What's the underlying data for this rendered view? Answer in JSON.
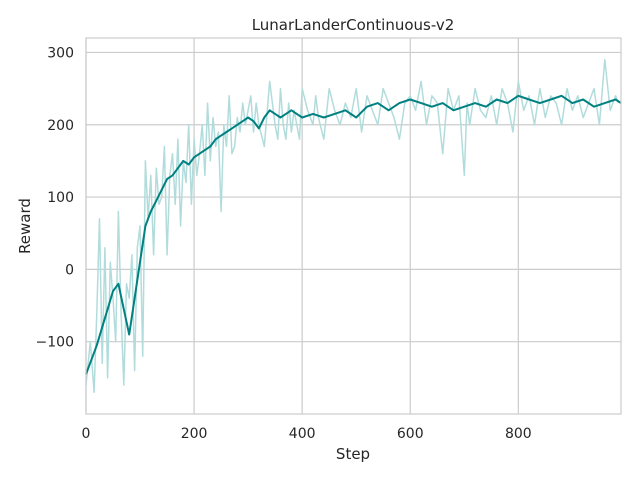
{
  "chart_data": {
    "type": "line",
    "title": "LunarLanderContinuous-v2",
    "xlabel": "Step",
    "ylabel": "Reward",
    "xlim": [
      0,
      990
    ],
    "ylim": [
      -200,
      320
    ],
    "xticks": [
      0,
      200,
      400,
      600,
      800
    ],
    "yticks": [
      -100,
      0,
      100,
      200,
      300
    ],
    "grid": true,
    "colors": {
      "raw": "#b2dcdc",
      "smoothed": "#008080"
    },
    "series": [
      {
        "role": "raw",
        "x": [
          0,
          8,
          15,
          20,
          25,
          30,
          35,
          40,
          45,
          50,
          55,
          60,
          65,
          70,
          75,
          80,
          85,
          90,
          95,
          100,
          105,
          110,
          115,
          120,
          125,
          130,
          135,
          140,
          145,
          150,
          155,
          160,
          165,
          170,
          175,
          180,
          185,
          190,
          195,
          200,
          205,
          210,
          215,
          220,
          225,
          230,
          235,
          240,
          245,
          250,
          255,
          260,
          265,
          270,
          275,
          280,
          285,
          290,
          295,
          300,
          305,
          310,
          315,
          320,
          330,
          340,
          350,
          355,
          360,
          365,
          370,
          375,
          380,
          385,
          390,
          395,
          400,
          410,
          420,
          425,
          430,
          440,
          450,
          460,
          470,
          480,
          490,
          500,
          510,
          520,
          530,
          540,
          550,
          560,
          570,
          580,
          590,
          600,
          610,
          620,
          630,
          640,
          650,
          660,
          670,
          680,
          690,
          700,
          705,
          710,
          720,
          730,
          740,
          750,
          760,
          770,
          780,
          790,
          800,
          810,
          820,
          830,
          840,
          850,
          860,
          870,
          880,
          890,
          900,
          910,
          920,
          930,
          940,
          950,
          960,
          970,
          980,
          985
        ],
        "y": [
          -160,
          -100,
          -170,
          -60,
          70,
          -130,
          30,
          -150,
          10,
          -40,
          -100,
          80,
          -60,
          -160,
          -20,
          -40,
          20,
          -140,
          30,
          60,
          -120,
          150,
          70,
          130,
          20,
          140,
          90,
          100,
          170,
          20,
          130,
          160,
          90,
          180,
          60,
          150,
          120,
          200,
          90,
          180,
          130,
          160,
          200,
          130,
          230,
          150,
          210,
          170,
          190,
          80,
          200,
          170,
          240,
          160,
          170,
          210,
          190,
          230,
          200,
          220,
          240,
          190,
          230,
          200,
          170,
          260,
          200,
          180,
          250,
          200,
          180,
          230,
          190,
          220,
          200,
          180,
          250,
          220,
          200,
          240,
          210,
          180,
          250,
          220,
          200,
          230,
          210,
          250,
          190,
          240,
          220,
          200,
          250,
          230,
          210,
          180,
          230,
          240,
          220,
          260,
          200,
          240,
          230,
          160,
          250,
          220,
          240,
          130,
          230,
          200,
          250,
          220,
          210,
          240,
          200,
          250,
          230,
          190,
          260,
          220,
          240,
          200,
          250,
          210,
          240,
          230,
          200,
          250,
          220,
          240,
          210,
          230,
          250,
          200,
          290,
          220,
          240,
          230
        ]
      },
      {
        "role": "smoothed",
        "x": [
          0,
          10,
          20,
          30,
          40,
          50,
          60,
          70,
          80,
          90,
          100,
          110,
          120,
          130,
          140,
          150,
          160,
          170,
          180,
          190,
          200,
          210,
          220,
          230,
          240,
          250,
          260,
          270,
          280,
          290,
          300,
          310,
          320,
          330,
          340,
          350,
          360,
          370,
          380,
          390,
          400,
          420,
          440,
          460,
          480,
          500,
          520,
          540,
          560,
          580,
          600,
          620,
          640,
          660,
          680,
          700,
          720,
          740,
          760,
          780,
          800,
          820,
          840,
          860,
          880,
          900,
          920,
          940,
          960,
          980,
          990
        ],
        "y": [
          -145,
          -125,
          -105,
          -80,
          -55,
          -30,
          -20,
          -55,
          -90,
          -40,
          10,
          60,
          80,
          95,
          110,
          125,
          130,
          140,
          150,
          145,
          155,
          160,
          165,
          170,
          180,
          185,
          190,
          195,
          200,
          205,
          210,
          205,
          195,
          210,
          220,
          215,
          210,
          215,
          220,
          215,
          210,
          215,
          210,
          215,
          220,
          210,
          225,
          230,
          220,
          230,
          235,
          230,
          225,
          230,
          220,
          225,
          230,
          225,
          235,
          230,
          240,
          235,
          230,
          235,
          240,
          230,
          235,
          225,
          230,
          235,
          230
        ]
      }
    ]
  }
}
